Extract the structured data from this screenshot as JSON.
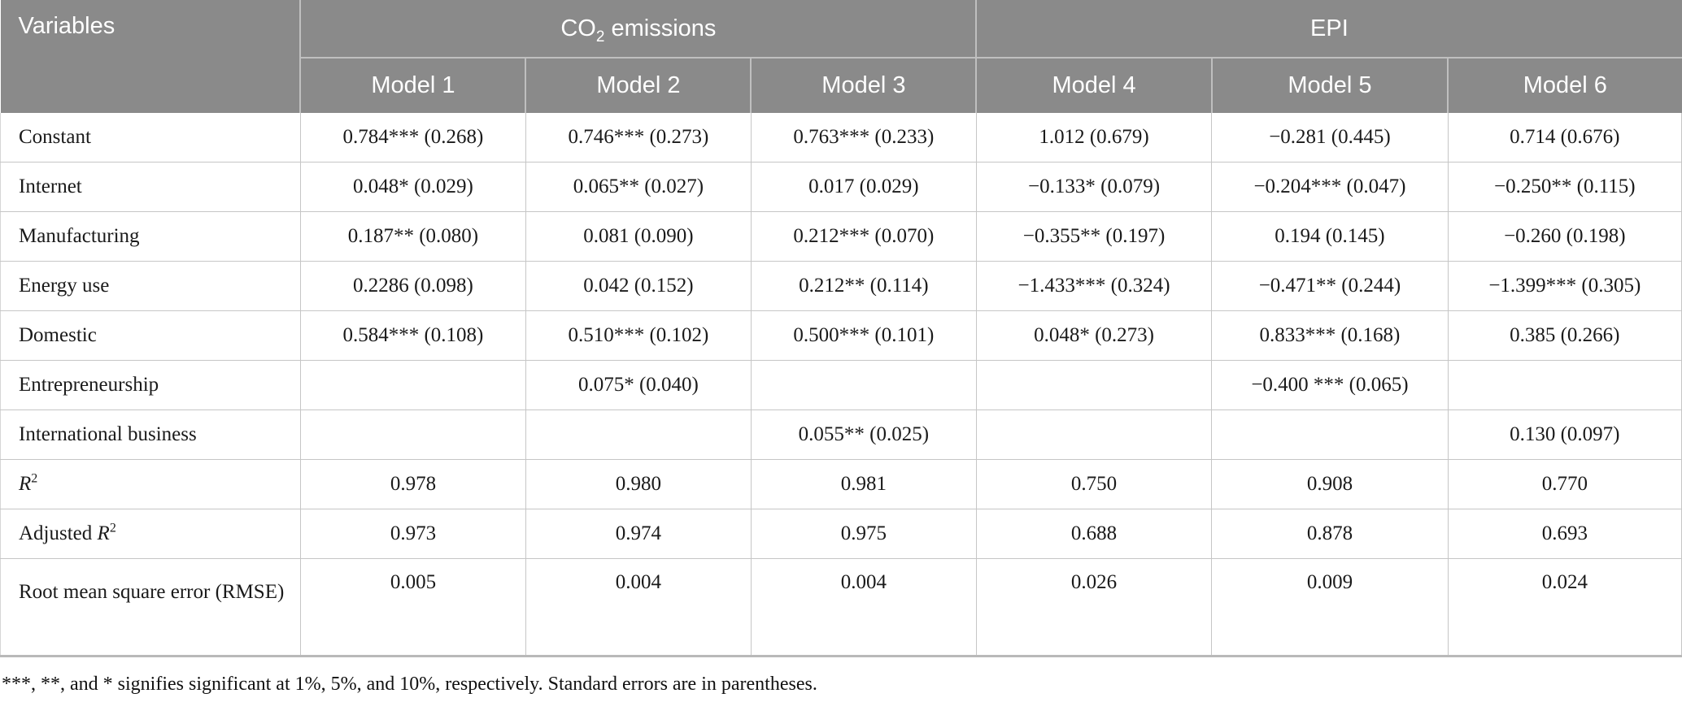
{
  "colors": {
    "header_bg": "#8a8a8a",
    "header_text": "#ffffff",
    "body_border": "#c6c6c6",
    "bottom_border": "#b9b9b9"
  },
  "table": {
    "header": {
      "variables_label": "Variables",
      "groups": [
        {
          "co2": {
            "base": "CO",
            "sub": "2",
            "rest": " emissions"
          },
          "models": [
            "Model 1",
            "Model 2",
            "Model 3"
          ]
        },
        {
          "label": "EPI",
          "models": [
            "Model 4",
            "Model 5",
            "Model 6"
          ]
        }
      ]
    },
    "rows": [
      {
        "label_parts": [
          {
            "t": "Constant"
          }
        ],
        "values": [
          "0.784*** (0.268)",
          "0.746*** (0.273)",
          "0.763*** (0.233)",
          "1.012 (0.679)",
          "−0.281 (0.445)",
          "0.714 (0.676)"
        ]
      },
      {
        "label_parts": [
          {
            "t": "Internet"
          }
        ],
        "values": [
          "0.048* (0.029)",
          "0.065** (0.027)",
          "0.017 (0.029)",
          "−0.133* (0.079)",
          "−0.204*** (0.047)",
          "−0.250** (0.115)"
        ]
      },
      {
        "label_parts": [
          {
            "t": "Manufacturing"
          }
        ],
        "values": [
          "0.187** (0.080)",
          "0.081 (0.090)",
          "0.212*** (0.070)",
          "−0.355** (0.197)",
          "0.194 (0.145)",
          "−0.260 (0.198)"
        ]
      },
      {
        "label_parts": [
          {
            "t": "Energy use"
          }
        ],
        "values": [
          "0.2286 (0.098)",
          "0.042 (0.152)",
          "0.212** (0.114)",
          "−1.433*** (0.324)",
          "−0.471** (0.244)",
          "−1.399*** (0.305)"
        ]
      },
      {
        "label_parts": [
          {
            "t": "Domestic"
          }
        ],
        "values": [
          "0.584*** (0.108)",
          "0.510*** (0.102)",
          "0.500*** (0.101)",
          "0.048* (0.273)",
          "0.833*** (0.168)",
          "0.385 (0.266)"
        ]
      },
      {
        "label_parts": [
          {
            "t": "Entrepreneurship"
          }
        ],
        "values": [
          "",
          "0.075* (0.040)",
          "",
          "",
          "−0.400 *** (0.065)",
          ""
        ]
      },
      {
        "label_parts": [
          {
            "t": "International business"
          }
        ],
        "values": [
          "",
          "",
          "0.055** (0.025)",
          "",
          "",
          "0.130 (0.097)"
        ]
      },
      {
        "label_parts": [
          {
            "t": "R",
            "i": true
          },
          {
            "t": "2",
            "sup": true
          }
        ],
        "values": [
          "0.978",
          "0.980",
          "0.981",
          "0.750",
          "0.908",
          "0.770"
        ]
      },
      {
        "label_parts": [
          {
            "t": "Adjusted "
          },
          {
            "t": "R",
            "i": true
          },
          {
            "t": "2",
            "sup": true
          }
        ],
        "values": [
          "0.973",
          "0.974",
          "0.975",
          "0.688",
          "0.878",
          "0.693"
        ]
      },
      {
        "label_parts": [
          {
            "t": "Root mean square error (RMSE)"
          }
        ],
        "tall": true,
        "values": [
          "0.005",
          "0.004",
          "0.004",
          "0.026",
          "0.009",
          "0.024"
        ]
      }
    ],
    "footnote": "***, **, and * signifies significant at 1%, 5%, and 10%, respectively. Standard errors are in parentheses."
  }
}
